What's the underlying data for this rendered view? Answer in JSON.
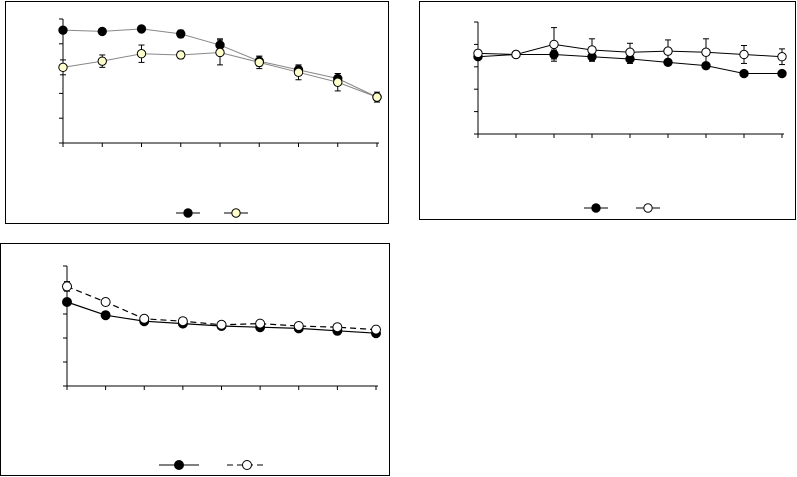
{
  "colors": {
    "axis": "#000000",
    "line_a": "#888888",
    "line_b": "#000000",
    "line_c": "#000000",
    "series_filled": "#000000",
    "series_open_a": "#ffffcc",
    "series_open": "#ffffff"
  },
  "chart_data": [
    {
      "type": "line",
      "title": "",
      "xlabel": "",
      "ylabel": "",
      "legend": "bottom",
      "grid": false,
      "xlim": [
        0,
        8
      ],
      "ylim": [
        0,
        5
      ],
      "x": [
        0,
        1,
        2,
        3,
        4,
        5,
        6,
        7,
        8
      ],
      "series": [
        {
          "marker": "filled",
          "values": [
            4.55,
            4.5,
            4.6,
            4.4,
            3.95,
            3.3,
            2.95,
            2.6,
            1.85
          ],
          "errors": [
            0.1,
            0.05,
            0.05,
            0.15,
            0.25,
            0.2,
            0.15,
            0.2,
            0.1
          ]
        },
        {
          "marker": "open",
          "values": [
            3.05,
            3.3,
            3.6,
            3.55,
            3.65,
            3.25,
            2.85,
            2.45,
            1.85
          ],
          "errors": [
            0.3,
            0.25,
            0.35,
            0.15,
            0.5,
            0.25,
            0.3,
            0.35,
            0.2
          ]
        }
      ]
    },
    {
      "type": "line",
      "title": "",
      "xlabel": "",
      "ylabel": "",
      "legend": "bottom",
      "grid": false,
      "xlim": [
        0,
        8
      ],
      "ylim": [
        0,
        5
      ],
      "x": [
        0,
        1,
        2,
        3,
        4,
        5,
        6,
        7,
        8
      ],
      "series": [
        {
          "marker": "filled",
          "values": [
            3.45,
            3.55,
            3.55,
            3.45,
            3.35,
            3.2,
            3.05,
            2.7,
            2.7
          ],
          "errors": [
            0.1,
            0.1,
            0.2,
            0.2,
            0.2,
            0.1,
            0.1,
            0.1,
            0.1
          ]
        },
        {
          "marker": "open",
          "values": [
            3.6,
            3.55,
            4.0,
            3.75,
            3.65,
            3.7,
            3.65,
            3.55,
            3.45
          ],
          "errors": [
            0.15,
            0.15,
            0.75,
            0.5,
            0.4,
            0.5,
            0.6,
            0.4,
            0.35
          ]
        }
      ]
    },
    {
      "type": "line",
      "title": "",
      "xlabel": "",
      "ylabel": "",
      "legend": "bottom",
      "grid": false,
      "xlim": [
        0,
        8
      ],
      "ylim": [
        0,
        5
      ],
      "x": [
        0,
        1,
        2,
        3,
        4,
        5,
        6,
        7,
        8
      ],
      "series": [
        {
          "marker": "filled",
          "line": "solid",
          "values": [
            3.5,
            2.95,
            2.7,
            2.6,
            2.5,
            2.45,
            2.4,
            2.3,
            2.2
          ]
        },
        {
          "marker": "open",
          "line": "dashed",
          "values": [
            4.15,
            3.5,
            2.8,
            2.7,
            2.55,
            2.6,
            2.5,
            2.45,
            2.35
          ],
          "errors": [
            0.2,
            0.15,
            0.1,
            0.1,
            0.1,
            0.1,
            0.1,
            0.1,
            0.1
          ]
        }
      ]
    }
  ]
}
